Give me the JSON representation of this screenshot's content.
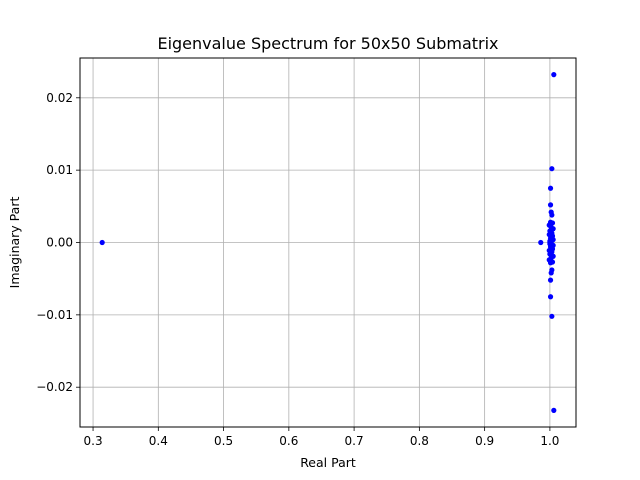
{
  "chart_data": {
    "type": "scatter",
    "title": "Eigenvalue Spectrum for 50x50 Submatrix",
    "xlabel": "Real Part",
    "ylabel": "Imaginary Part",
    "xlim": [
      0.28,
      1.04
    ],
    "ylim": [
      -0.0255,
      0.0255
    ],
    "xticks": [
      0.3,
      0.4,
      0.5,
      0.6,
      0.7,
      0.8,
      0.9,
      1.0
    ],
    "xtick_labels": [
      "0.3",
      "0.4",
      "0.5",
      "0.6",
      "0.7",
      "0.8",
      "0.9",
      "1.0"
    ],
    "yticks": [
      -0.02,
      -0.01,
      0.0,
      0.01,
      0.02
    ],
    "ytick_labels": [
      "−0.02",
      "−0.01",
      "0.00",
      "0.01",
      "0.02"
    ],
    "grid": true,
    "marker_color": "#0000ff",
    "points": [
      {
        "x": 0.314,
        "y": 0.0
      },
      {
        "x": 0.986,
        "y": 0.0
      },
      {
        "x": 1.006,
        "y": 0.0232
      },
      {
        "x": 1.006,
        "y": -0.0232
      },
      {
        "x": 1.003,
        "y": 0.0102
      },
      {
        "x": 1.003,
        "y": -0.0102
      },
      {
        "x": 1.001,
        "y": 0.0075
      },
      {
        "x": 1.001,
        "y": -0.0075
      },
      {
        "x": 1.001,
        "y": 0.0052
      },
      {
        "x": 1.001,
        "y": -0.0052
      },
      {
        "x": 1.002,
        "y": 0.0042
      },
      {
        "x": 1.002,
        "y": -0.0042
      },
      {
        "x": 1.003,
        "y": 0.0038
      },
      {
        "x": 1.003,
        "y": -0.0038
      },
      {
        "x": 1.001,
        "y": 0.0028
      },
      {
        "x": 1.001,
        "y": -0.0028
      },
      {
        "x": 1.004,
        "y": 0.0027
      },
      {
        "x": 1.004,
        "y": -0.0027
      },
      {
        "x": 0.999,
        "y": 0.0024
      },
      {
        "x": 0.999,
        "y": -0.0024
      },
      {
        "x": 1.002,
        "y": 0.0021
      },
      {
        "x": 1.002,
        "y": -0.0021
      },
      {
        "x": 1.005,
        "y": 0.0019
      },
      {
        "x": 1.005,
        "y": -0.0019
      },
      {
        "x": 1.0,
        "y": 0.0016
      },
      {
        "x": 1.0,
        "y": -0.0016
      },
      {
        "x": 1.003,
        "y": 0.0013
      },
      {
        "x": 1.003,
        "y": -0.0013
      },
      {
        "x": 0.999,
        "y": 0.0011
      },
      {
        "x": 0.999,
        "y": -0.0011
      },
      {
        "x": 1.004,
        "y": 0.0009
      },
      {
        "x": 1.004,
        "y": -0.0009
      },
      {
        "x": 1.001,
        "y": 0.0006
      },
      {
        "x": 1.001,
        "y": -0.0006
      },
      {
        "x": 1.005,
        "y": 0.0004
      },
      {
        "x": 1.005,
        "y": -0.0004
      },
      {
        "x": 1.0,
        "y": 0.0002
      },
      {
        "x": 1.0,
        "y": -0.0002
      },
      {
        "x": 1.002,
        "y": 0.0
      },
      {
        "x": 1.0,
        "y": 0.0
      }
    ]
  }
}
